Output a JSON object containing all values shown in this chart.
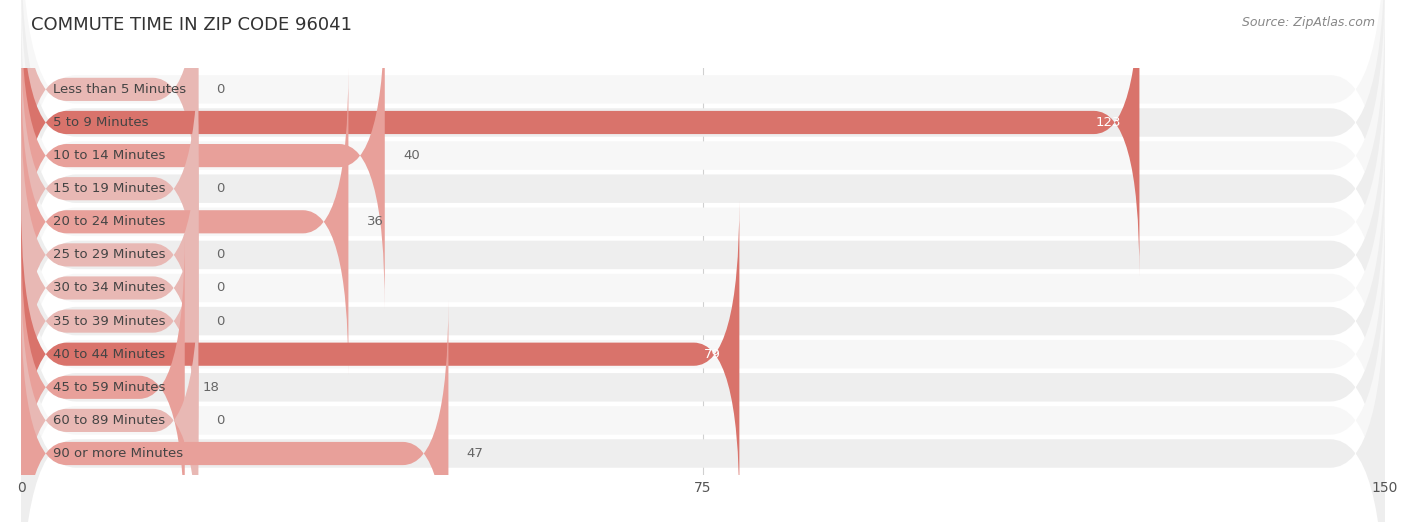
{
  "title": "Commute Time in Zip Code 96041",
  "title_display": "COMMUTE TIME IN ZIP CODE 96041",
  "source": "Source: ZipAtlas.com",
  "categories": [
    "Less than 5 Minutes",
    "5 to 9 Minutes",
    "10 to 14 Minutes",
    "15 to 19 Minutes",
    "20 to 24 Minutes",
    "25 to 29 Minutes",
    "30 to 34 Minutes",
    "35 to 39 Minutes",
    "40 to 44 Minutes",
    "45 to 59 Minutes",
    "60 to 89 Minutes",
    "90 or more Minutes"
  ],
  "values": [
    0,
    123,
    40,
    0,
    36,
    0,
    0,
    0,
    79,
    18,
    0,
    47
  ],
  "bar_color_dark": "#d9736b",
  "bar_color_light": "#e8a09a",
  "bar_color_zero": "#e8b8b4",
  "bg_color": "#ffffff",
  "row_bg_light": "#f7f7f7",
  "row_bg_dark": "#eeeeee",
  "grid_color": "#d0d0d0",
  "title_color": "#333333",
  "label_color": "#444444",
  "value_color_inside": "#ffffff",
  "value_color_outside": "#666666",
  "xlim": [
    0,
    150
  ],
  "xticks": [
    0,
    75,
    150
  ],
  "title_fontsize": 13,
  "label_fontsize": 9.5,
  "tick_fontsize": 10,
  "source_fontsize": 9
}
